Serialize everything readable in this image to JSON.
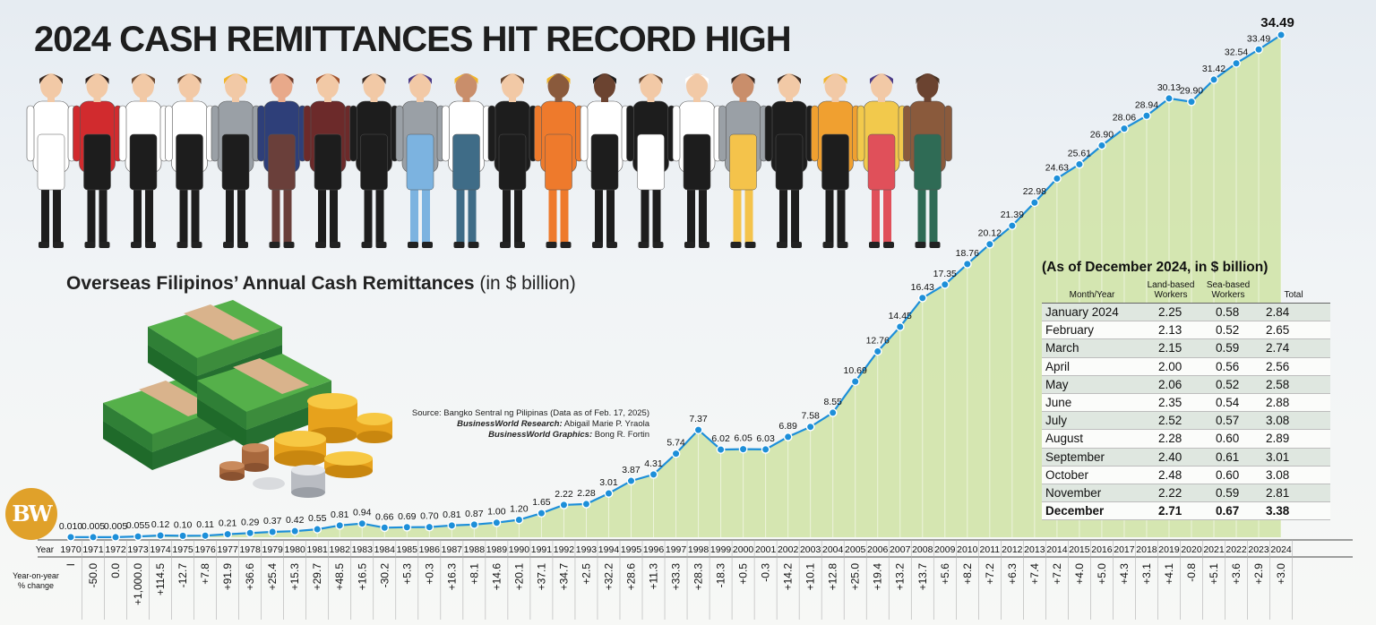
{
  "title": "2024 CASH REMITTANCES HIT RECORD HIGH",
  "subtitle": {
    "main": "Overseas Filipinos’ Annual Cash Remittances",
    "unit": "(in $ billion)"
  },
  "source": {
    "line1": "Source: Bangko Sentral ng Pilipinas (Data as of Feb. 17, 2025)",
    "line2_label": "BusinessWorld Research:",
    "line2_value": "Abigail Marie P. Yraola",
    "line3_label": "BusinessWorld Graphics:",
    "line3_value": "Bong R. Fortin"
  },
  "logo_text": "BW",
  "colors": {
    "line": "#1d8fd9",
    "area": "#cfe3a4",
    "point": "#1d8fd9",
    "logo": "#e0a12a"
  },
  "chart_data": {
    "type": "area",
    "title": "Overseas Filipinos’ Annual Cash Remittances (in $ billion)",
    "row_labels": {
      "year": "Year",
      "yoy": "Year-on-year % change"
    },
    "years": [
      "1970",
      "1971",
      "1972",
      "1973",
      "1974",
      "1975",
      "1976",
      "1977",
      "1978",
      "1979",
      "1980",
      "1981",
      "1982",
      "1983",
      "1984",
      "1985",
      "1986",
      "1987",
      "1988",
      "1989",
      "1990",
      "1991",
      "1992",
      "1993",
      "1994",
      "1995",
      "1996",
      "1997",
      "1998",
      "1999",
      "2000",
      "2001",
      "2002",
      "2003",
      "2004",
      "2005",
      "2006",
      "2007",
      "2008",
      "2009",
      "2010",
      "2011",
      "2012",
      "2013",
      "2014",
      "2015",
      "2016",
      "2017",
      "2018",
      "2019",
      "2020",
      "2021",
      "2022",
      "2023",
      "2024"
    ],
    "values": [
      0.01,
      0.005,
      0.005,
      0.055,
      0.12,
      0.1,
      0.11,
      0.21,
      0.29,
      0.37,
      0.42,
      0.55,
      0.81,
      0.94,
      0.66,
      0.69,
      0.7,
      0.81,
      0.87,
      1.0,
      1.2,
      1.65,
      2.22,
      2.28,
      3.01,
      3.87,
      4.31,
      5.74,
      7.37,
      6.02,
      6.05,
      6.03,
      6.89,
      7.58,
      8.55,
      10.69,
      12.76,
      14.45,
      16.43,
      17.35,
      18.76,
      20.12,
      21.39,
      22.98,
      24.63,
      25.61,
      26.9,
      28.06,
      28.94,
      30.13,
      29.9,
      31.42,
      32.54,
      33.49,
      34.49
    ],
    "value_labels": [
      "0.010",
      "0.005",
      "0.005",
      "0.055",
      "0.12",
      "0.10",
      "0.11",
      "0.21",
      "0.29",
      "0.37",
      "0.42",
      "0.55",
      "0.81",
      "0.94",
      "0.66",
      "0.69",
      "0.70",
      "0.81",
      "0.87",
      "1.00",
      "1.20",
      "1.65",
      "2.22",
      "2.28",
      "3.01",
      "3.87",
      "4.31",
      "5.74",
      "7.37",
      "6.02",
      "6.05",
      "6.03",
      "6.89",
      "7.58",
      "8.55",
      "10.69",
      "12.76",
      "14.45",
      "16.43",
      "17.35",
      "18.76",
      "20.12",
      "21.39",
      "22.98",
      "24.63",
      "25.61",
      "26.90",
      "28.06",
      "28.94",
      "30.13",
      "29.90",
      "31.42",
      "32.54",
      "33.49",
      "34.49"
    ],
    "yoy_change": [
      "I",
      "-50.0",
      "0.0",
      "+1,000.0",
      "+114.5",
      "-12.7",
      "+7.8",
      "+91.9",
      "+36.6",
      "+25.4",
      "+15.3",
      "+29.7",
      "+48.5",
      "+16.5",
      "-30.2",
      "+5.3",
      "+0.3",
      "+16.3",
      "+8.1",
      "+14.6",
      "+20.1",
      "+37.1",
      "+34.7",
      "+2.5",
      "+32.2",
      "+28.6",
      "+11.3",
      "+33.3",
      "+28.3",
      "-18.3",
      "+0.5",
      "-0.3",
      "+14.2",
      "+10.1",
      "+12.8",
      "+25.0",
      "+19.4",
      "+13.2",
      "+13.7",
      "+5.6",
      "+8.2",
      "+7.2",
      "+6.3",
      "+7.4",
      "+7.2",
      "+4.0",
      "+5.0",
      "+4.3",
      "+3.1",
      "+4.1",
      "-0.8",
      "+5.1",
      "+3.6",
      "+2.9",
      "+3.0"
    ],
    "ylim": [
      0,
      35
    ]
  },
  "monthly_table": {
    "caption": "(As of December 2024, in $ billion)",
    "headers": [
      "Month/Year",
      "Land-based Workers",
      "Sea-based Workers",
      "Total"
    ],
    "rows": [
      [
        "January 2024",
        "2.25",
        "0.58",
        "2.84"
      ],
      [
        "February",
        "2.13",
        "0.52",
        "2.65"
      ],
      [
        "March",
        "2.15",
        "0.59",
        "2.74"
      ],
      [
        "April",
        "2.00",
        "0.56",
        "2.56"
      ],
      [
        "May",
        "2.06",
        "0.52",
        "2.58"
      ],
      [
        "June",
        "2.35",
        "0.54",
        "2.88"
      ],
      [
        "July",
        "2.52",
        "0.57",
        "3.08"
      ],
      [
        "August",
        "2.28",
        "0.60",
        "2.89"
      ],
      [
        "September",
        "2.40",
        "0.61",
        "3.01"
      ],
      [
        "October",
        "2.48",
        "0.60",
        "3.08"
      ],
      [
        "November",
        "2.22",
        "0.59",
        "2.81"
      ],
      [
        "December",
        "2.71",
        "0.67",
        "3.38"
      ]
    ]
  },
  "workers": [
    {
      "shirt": "#ffffff",
      "lower": "#ffffff",
      "skin": "#f2c9a6",
      "hair": "#3a2a22"
    },
    {
      "shirt": "#d12b2e",
      "lower": "#1d1d1d",
      "skin": "#f2c9a6",
      "hair": "#2b1d18"
    },
    {
      "shirt": "#ffffff",
      "lower": "#1d1d1d",
      "skin": "#f2c9a6",
      "hair": "#6b4a33"
    },
    {
      "shirt": "#ffffff",
      "lower": "#1d1d1d",
      "skin": "#f2c9a6",
      "hair": "#6b4a33"
    },
    {
      "shirt": "#9aa0a6",
      "lower": "#1d1d1d",
      "skin": "#f2c9a6",
      "hair": "#f1b52a"
    },
    {
      "shirt": "#2e3f79",
      "lower": "#6a3f3a",
      "skin": "#e8a98a",
      "hair": "#6b3a2a"
    },
    {
      "shirt": "#6c2a2a",
      "lower": "#1d1d1d",
      "skin": "#f2c9a6",
      "hair": "#a0522d"
    },
    {
      "shirt": "#1d1d1d",
      "lower": "#1d1d1d",
      "skin": "#f2c9a6",
      "hair": "#3a2a22"
    },
    {
      "shirt": "#9aa0a6",
      "lower": "#7cb3e0",
      "skin": "#f2c9a6",
      "hair": "#4a3a86"
    },
    {
      "shirt": "#ffffff",
      "lower": "#3f6c87",
      "skin": "#c98e6b",
      "hair": "#f1b52a"
    },
    {
      "shirt": "#1d1d1d",
      "lower": "#1d1d1d",
      "skin": "#f2c9a6",
      "hair": "#6b4a33"
    },
    {
      "shirt": "#ee7a2c",
      "lower": "#ee7a2c",
      "skin": "#8a5a3c",
      "hair": "#f1b52a"
    },
    {
      "shirt": "#ffffff",
      "lower": "#1d1d1d",
      "skin": "#6b4330",
      "hair": "#1d1d1d"
    },
    {
      "shirt": "#1d1d1d",
      "lower": "#ffffff",
      "skin": "#f2c9a6",
      "hair": "#6b4a33"
    },
    {
      "shirt": "#ffffff",
      "lower": "#1d1d1d",
      "skin": "#f2c9a6",
      "hair": "#ffffff"
    },
    {
      "shirt": "#9aa0a6",
      "lower": "#f4c34b",
      "skin": "#c98e6b",
      "hair": "#3a2a22"
    },
    {
      "shirt": "#1d1d1d",
      "lower": "#1d1d1d",
      "skin": "#f2c9a6",
      "hair": "#3a2a22"
    },
    {
      "shirt": "#f0a030",
      "lower": "#1d1d1d",
      "skin": "#f2c9a6",
      "hair": "#f1b52a"
    },
    {
      "shirt": "#f2c94c",
      "lower": "#e0505a",
      "skin": "#f2c9a6",
      "hair": "#4a3a86"
    },
    {
      "shirt": "#8a5a3c",
      "lower": "#2f6b55",
      "skin": "#6b4330",
      "hair": "#4a3325"
    }
  ]
}
